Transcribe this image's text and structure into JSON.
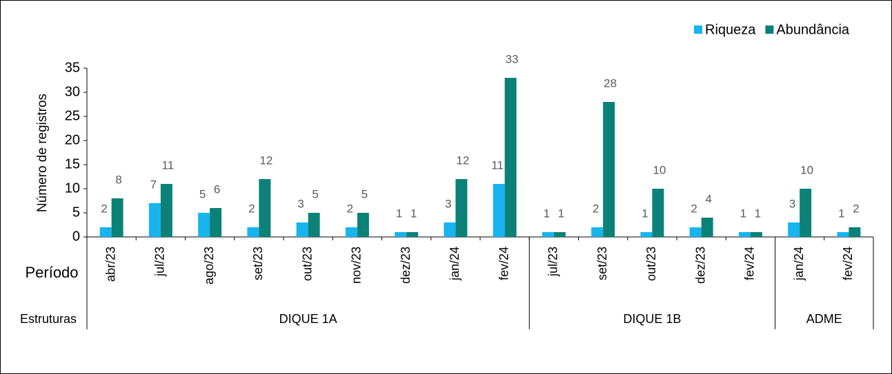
{
  "chart_data": {
    "type": "bar",
    "y_label": "Número de registros",
    "x_label": "Período",
    "group_label": "Estruturas",
    "groups": [
      {
        "name": "DIQUE 1A",
        "categories": [
          "abr/23",
          "jul/23",
          "ago/23",
          "set/23",
          "out/23",
          "nov/23",
          "dez/23",
          "jan/24",
          "fev/24"
        ]
      },
      {
        "name": "DIQUE 1B",
        "categories": [
          "jul/23",
          "set/23",
          "out/23",
          "dez/23",
          "fev/24"
        ]
      },
      {
        "name": "ADME",
        "categories": [
          "jan/24",
          "fev/24"
        ]
      }
    ],
    "series": [
      {
        "name": "Riqueza",
        "color": "#18b4ee",
        "values": [
          2,
          7,
          5,
          2,
          3,
          2,
          1,
          3,
          11,
          1,
          2,
          1,
          2,
          1,
          3,
          1
        ]
      },
      {
        "name": "Abundância",
        "color": "#0b8178",
        "values": [
          8,
          11,
          6,
          12,
          5,
          5,
          1,
          12,
          33,
          1,
          28,
          10,
          4,
          1,
          10,
          2
        ]
      }
    ],
    "ylim": [
      0,
      35
    ],
    "yticks": [
      0,
      5,
      10,
      15,
      20,
      25,
      30,
      35
    ],
    "legend": "top-right"
  }
}
